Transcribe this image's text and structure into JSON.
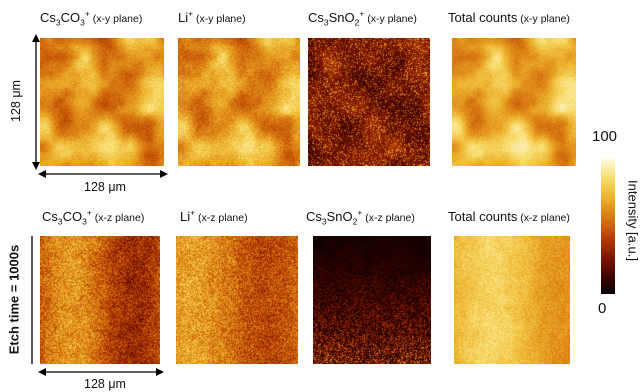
{
  "top_row": {
    "panel_titles": [
      {
        "species_prefix": "Cs",
        "species_sub1": "3",
        "species_mid": "CO",
        "species_sub2": "3",
        "species_sup": "+",
        "plane": " (x-y plane)"
      },
      {
        "species_prefix": "Li",
        "species_sub1": "",
        "species_mid": "",
        "species_sub2": "",
        "species_sup": "+",
        "plane": " (x-y plane)"
      },
      {
        "species_prefix": "Cs",
        "species_sub1": "3",
        "species_mid": "SnO",
        "species_sub2": "2",
        "species_sup": "+",
        "plane": " (x-y plane)"
      },
      {
        "species_prefix": "Total counts",
        "species_sub1": "",
        "species_mid": "",
        "species_sub2": "",
        "species_sup": "",
        "plane": " (x-y plane)"
      }
    ],
    "vertical_dimension": "128 μm",
    "horizontal_dimension": "128 μm"
  },
  "bottom_row": {
    "panel_titles": [
      {
        "species_prefix": "Cs",
        "species_sub1": "3",
        "species_mid": "CO",
        "species_sub2": "3",
        "species_sup": "+",
        "plane": " (x-z plane)"
      },
      {
        "species_prefix": "Li",
        "species_sub1": "",
        "species_mid": "",
        "species_sub2": "",
        "species_sup": "+",
        "plane": " (x-z plane)"
      },
      {
        "species_prefix": "Cs",
        "species_sub1": "3",
        "species_mid": "SnO",
        "species_sub2": "2",
        "species_sup": "+",
        "plane": " (x-z plane)"
      },
      {
        "species_prefix": "Total counts",
        "species_sub1": "",
        "species_mid": "",
        "species_sub2": "",
        "species_sup": "",
        "plane": " (x-z plane)"
      }
    ],
    "vertical_dimension": "Etch time = 1000s",
    "horizontal_dimension": "128 μm"
  },
  "colorbar": {
    "max_label": "100",
    "min_label": "0",
    "axis_label": "Intensity [a.u.]",
    "colors": [
      "#000000",
      "#7a1500",
      "#d67410",
      "#f8dd6c",
      "#fffbe8"
    ]
  }
}
